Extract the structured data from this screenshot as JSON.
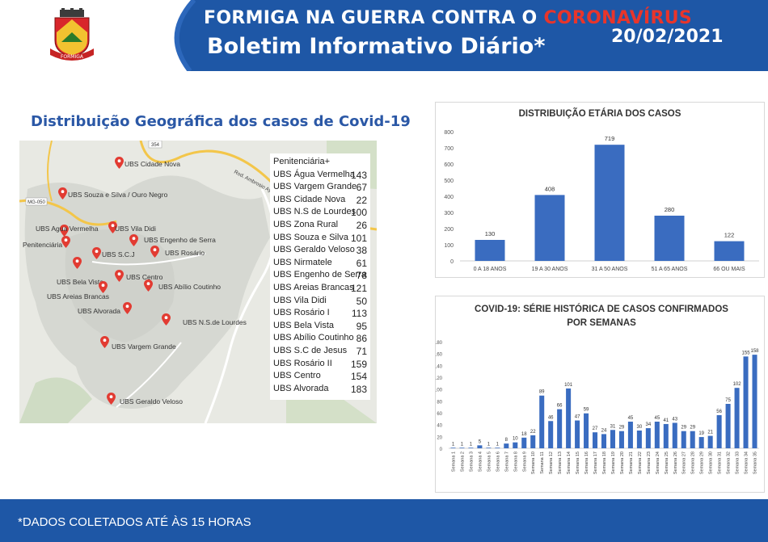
{
  "header": {
    "title_prefix": "FORMIGA NA GUERRA CONTRA O ",
    "title_highlight": "CORONAVÍRUS",
    "subtitle": "Boletim Informativo Diário*",
    "date": "20/02/2021",
    "crest_text": "FORMIGA"
  },
  "map": {
    "title": "Distribuição Geográfica dos casos de Covid-19",
    "road_labels": [
      "354",
      "MG-050",
      "Rod. Ambrosio Ayoub do Nascimento"
    ],
    "places": [
      "UBS Cidade Nova",
      "UBS Souza e Silva / Ouro Negro",
      "UBS Agua Vermelha",
      "UBS Vila Didi",
      "Penitenciária",
      "UBS Engenho de Serra",
      "UBS S.C.J",
      "UBS Rosário",
      "UBS Centro",
      "UBS Bela Vista",
      "UBS Abílio Coutinho",
      "UBS Areias Brancas",
      "UBS Alvorada",
      "UBS N.S.de Lourdes",
      "UBS Vargem Grande",
      "UBS Geraldo Veloso"
    ],
    "cases": [
      {
        "name": "Penitenciária+",
        "value": ""
      },
      {
        "name": "UBS Água Vermelha",
        "value": "143"
      },
      {
        "name": "UBS Vargem Grande",
        "value": "67"
      },
      {
        "name": "UBS Cidade Nova",
        "value": "22"
      },
      {
        "name": "UBS N.S de Lourdes",
        "value": "100"
      },
      {
        "name": "UBS Zona Rural",
        "value": "26"
      },
      {
        "name": "UBS Souza e Silva",
        "value": "101"
      },
      {
        "name": "UBS Geraldo Veloso",
        "value": "38"
      },
      {
        "name": "UBS Nirmatele",
        "value": "61"
      },
      {
        "name": "UBS Engenho de Serra",
        "value": "78"
      },
      {
        "name": "UBS Areias Brancas",
        "value": "121"
      },
      {
        "name": "UBS Vila Didi",
        "value": "50"
      },
      {
        "name": "UBS Rosário I",
        "value": "113"
      },
      {
        "name": "UBS Bela Vista",
        "value": "95"
      },
      {
        "name": "UBS Abílio Coutinho",
        "value": "86"
      },
      {
        "name": "UBS S.C de Jesus",
        "value": "71"
      },
      {
        "name": "UBS Rosário II",
        "value": "159"
      },
      {
        "name": "UBS Centro",
        "value": "154"
      },
      {
        "name": "UBS Alvorada",
        "value": "183"
      }
    ]
  },
  "colors": {
    "brand_blue": "#1e57a6",
    "bar_blue": "#3a6cc0",
    "accent_red": "#e8352b",
    "pin_red": "#e23b32"
  },
  "footer": {
    "note": "*DADOS COLETADOS ATÉ ÀS 15 HORAS"
  },
  "chart_data": [
    {
      "type": "bar",
      "title": "DISTRIBUIÇÃO ETÁRIA DOS CASOS",
      "categories": [
        "0 A 18 ANOS",
        "19 A 30 ANOS",
        "31 A 50 ANOS",
        "51 A 65 ANOS",
        "66 OU MAIS"
      ],
      "values": [
        130,
        408,
        719,
        280,
        122
      ],
      "ylim": [
        0,
        800
      ],
      "yticks": [
        0,
        100,
        200,
        300,
        400,
        500,
        600,
        700,
        800
      ],
      "data_labels": true,
      "grid": false
    },
    {
      "type": "bar",
      "title": "COVID-19: SÉRIE HISTÓRICA DE CASOS CONFIRMADOS POR SEMANAS",
      "categories": [
        "Semana 1",
        "Semana 2",
        "Semana 3",
        "Semana 4",
        "Semana 5",
        "Semana 6",
        "Semana 7",
        "Semana 8",
        "Semana 9",
        "Semana 10",
        "Semana 11",
        "Semana 12",
        "Semana 13",
        "Semana 14",
        "Semana 15",
        "Semana 16",
        "Semana 17",
        "Semana 18",
        "Semana 19",
        "Semana 20",
        "Semana 21",
        "Semana 22",
        "Semana 23",
        "Semana 24",
        "Semana 25",
        "Semana 26",
        "Semana 27",
        "Semana 28",
        "Semana 29",
        "Semana 30",
        "Semana 31",
        "Semana 32",
        "Semana 33",
        "Semana 34",
        "Semana 35"
      ],
      "values": [
        1,
        1,
        1,
        5,
        1,
        1,
        8,
        10,
        18,
        22,
        89,
        46,
        66,
        101,
        47,
        59,
        27,
        24,
        31,
        29,
        45,
        30,
        34,
        45,
        41,
        43,
        29,
        29,
        19,
        21,
        56,
        75,
        102,
        155,
        158
      ],
      "ylim": [
        0,
        180
      ],
      "yticks": [
        0,
        20,
        40,
        60,
        80,
        100,
        120,
        140,
        160,
        180
      ],
      "data_labels": true,
      "grid": false
    }
  ]
}
